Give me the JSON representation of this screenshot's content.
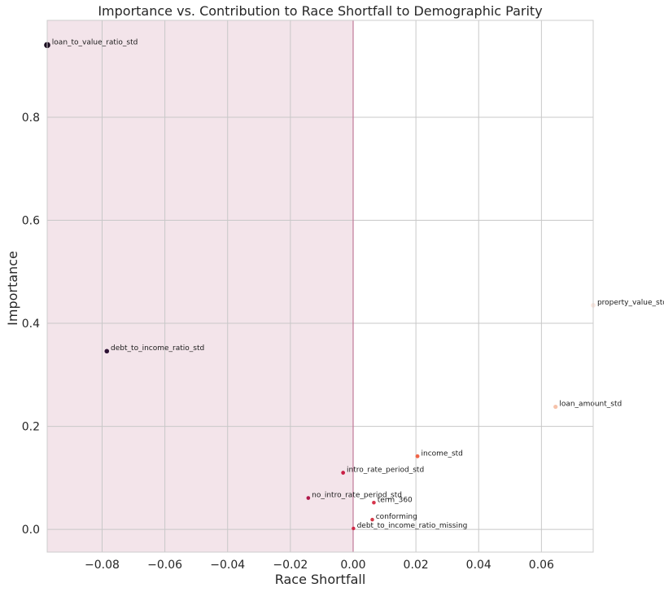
{
  "chart_data": {
    "type": "scatter",
    "title": "Importance vs. Contribution to Race Shortfall to Demographic Parity",
    "xlabel": "Race Shortfall",
    "ylabel": "Importance",
    "xlim": [
      -0.0975,
      0.0765
    ],
    "ylim": [
      -0.044,
      0.988
    ],
    "xticks": [
      -0.08,
      -0.06,
      -0.04,
      -0.02,
      0.0,
      0.02,
      0.04,
      0.06
    ],
    "xtick_labels": [
      "−0.08",
      "−0.06",
      "−0.04",
      "−0.02",
      "0.00",
      "0.02",
      "0.04",
      "0.06"
    ],
    "yticks": [
      0.0,
      0.2,
      0.4,
      0.6,
      0.8
    ],
    "ytick_labels": [
      "0.0",
      "0.2",
      "0.4",
      "0.6",
      "0.8"
    ],
    "grid": true,
    "shaded_region": {
      "x_from": -0.0975,
      "x_to": 0.0,
      "color": "#f3e4ea"
    },
    "vertical_line": {
      "x": 0.0,
      "color": "#c07898"
    },
    "points": [
      {
        "label": "loan_to_value_ratio_std",
        "x": -0.0975,
        "y": 0.94,
        "color": "#1a0c20"
      },
      {
        "label": "debt_to_income_ratio_std",
        "x": -0.0785,
        "y": 0.346,
        "color": "#2d1234"
      },
      {
        "label": "property_value_std",
        "x": 0.0765,
        "y": 0.435,
        "color": "#fbe8e0"
      },
      {
        "label": "loan_amount_std",
        "x": 0.0645,
        "y": 0.238,
        "color": "#f6c2aa"
      },
      {
        "label": "income_std",
        "x": 0.0205,
        "y": 0.142,
        "color": "#f06548"
      },
      {
        "label": "intro_rate_period_std",
        "x": -0.0032,
        "y": 0.11,
        "color": "#c81f45"
      },
      {
        "label": "no_intro_rate_period_std",
        "x": -0.0143,
        "y": 0.061,
        "color": "#b0184a"
      },
      {
        "label": "term_360",
        "x": 0.0066,
        "y": 0.052,
        "color": "#d6334a"
      },
      {
        "label": "conforming",
        "x": 0.0061,
        "y": 0.019,
        "color": "#d53a48"
      },
      {
        "label": "debt_to_income_ratio_missing",
        "x": 0.0001,
        "y": 0.002,
        "color": "#cf2a48"
      }
    ]
  }
}
